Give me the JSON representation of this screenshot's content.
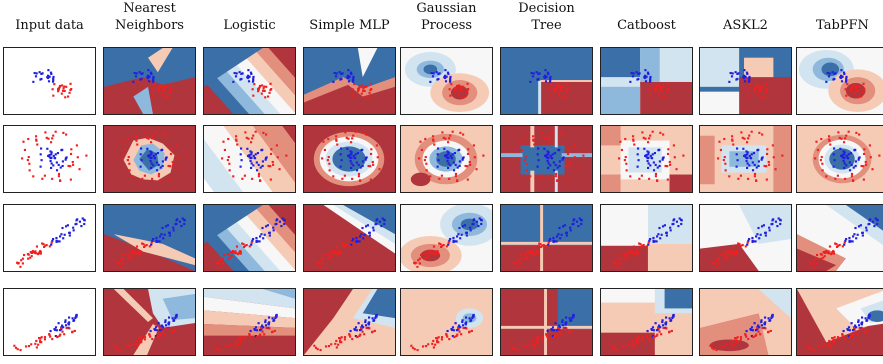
{
  "columns": [
    {
      "id": "input",
      "lines": [
        "",
        "Input data"
      ]
    },
    {
      "id": "nn",
      "lines": [
        "Nearest",
        "Neighbors"
      ]
    },
    {
      "id": "logistic",
      "lines": [
        "",
        "Logistic"
      ]
    },
    {
      "id": "mlp",
      "lines": [
        "",
        "Simple MLP"
      ]
    },
    {
      "id": "gp",
      "lines": [
        "Gaussian",
        "Process"
      ]
    },
    {
      "id": "tree",
      "lines": [
        "Decision",
        "Tree"
      ]
    },
    {
      "id": "catboost",
      "lines": [
        "",
        "Catboost"
      ]
    },
    {
      "id": "askl2",
      "lines": [
        "",
        "ASKL2"
      ]
    },
    {
      "id": "tabpfn",
      "lines": [
        "",
        "TabPFN"
      ]
    }
  ],
  "rows": [
    {
      "id": "moons"
    },
    {
      "id": "circles"
    },
    {
      "id": "linear-1"
    },
    {
      "id": "linear-2"
    }
  ],
  "colors": {
    "blue_dark": "#3b6fa8",
    "blue_mid": "#8fb9dc",
    "blue_light": "#d3e4f1",
    "white": "#f7f7f7",
    "red_light": "#f6cbb6",
    "red_mid": "#e28f7d",
    "red_dark": "#b0353c",
    "point_blue": "#1f1fe0",
    "point_red": "#f02020"
  }
}
